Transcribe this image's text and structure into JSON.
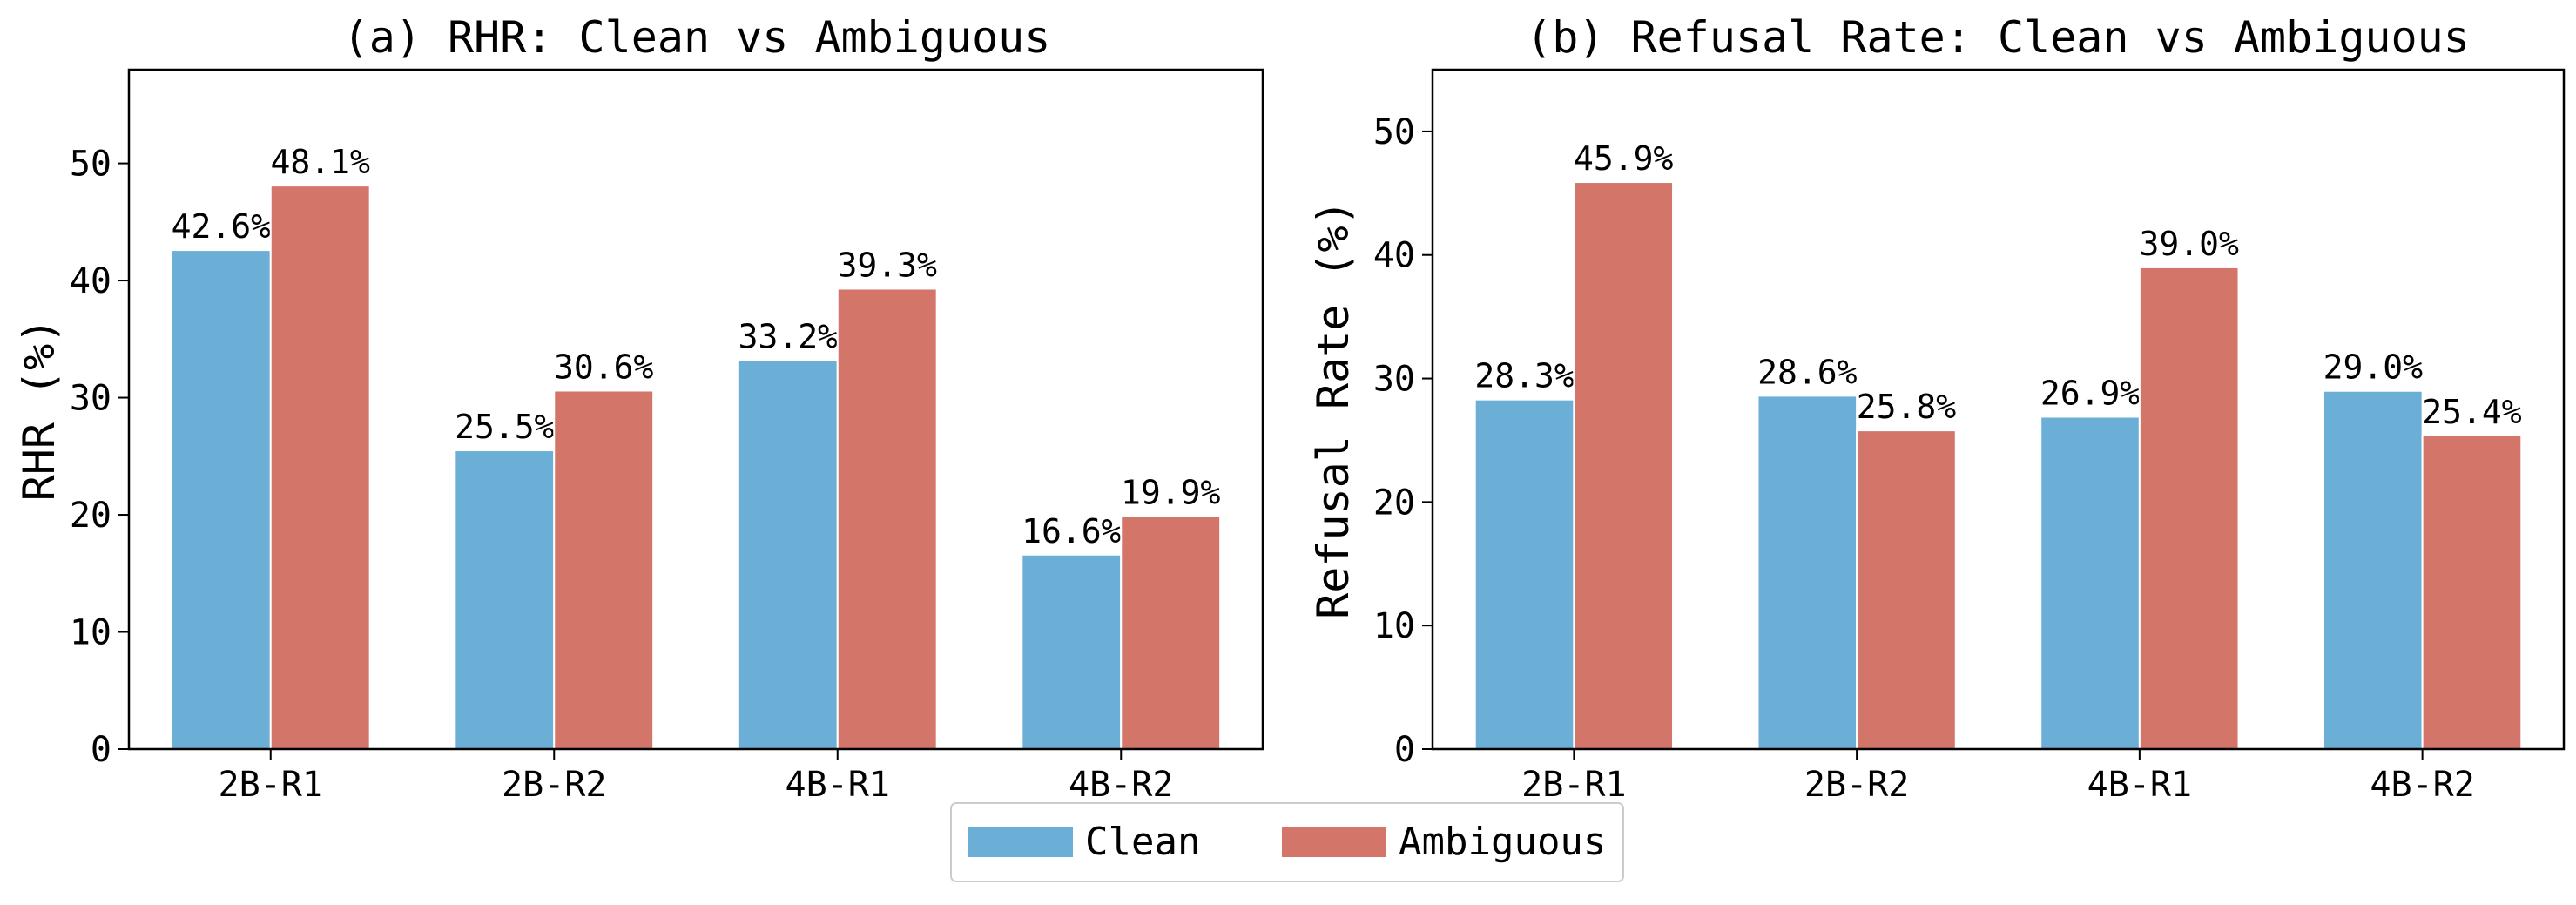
{
  "colors": {
    "clean": "#6BAED6",
    "ambiguous": "#D4756A",
    "axis": "#000000",
    "legend_border": "#CCCCCC"
  },
  "legend": {
    "items": [
      {
        "key": "clean",
        "label": "Clean"
      },
      {
        "key": "ambiguous",
        "label": "Ambiguous"
      }
    ],
    "placement": "bottom-center"
  },
  "chart_data": [
    {
      "id": "a",
      "type": "bar",
      "title": "(a) RHR: Clean vs Ambiguous",
      "xlabel": "",
      "ylabel": "RHR (%)",
      "categories": [
        "2B-R1",
        "2B-R2",
        "4B-R1",
        "4B-R2"
      ],
      "yticks": [
        0,
        10,
        20,
        30,
        40,
        50
      ],
      "ylim": [
        0,
        58
      ],
      "grid": false,
      "series": [
        {
          "name": "Clean",
          "values": [
            42.6,
            25.5,
            33.2,
            16.6
          ],
          "labels": [
            "42.6%",
            "25.5%",
            "33.2%",
            "16.6%"
          ]
        },
        {
          "name": "Ambiguous",
          "values": [
            48.1,
            30.6,
            39.3,
            19.9
          ],
          "labels": [
            "48.1%",
            "30.6%",
            "39.3%",
            "19.9%"
          ]
        }
      ]
    },
    {
      "id": "b",
      "type": "bar",
      "title": "(b) Refusal Rate: Clean vs Ambiguous",
      "xlabel": "",
      "ylabel": "Refusal Rate (%)",
      "categories": [
        "2B-R1",
        "2B-R2",
        "4B-R1",
        "4B-R2"
      ],
      "yticks": [
        0,
        10,
        20,
        30,
        40,
        50
      ],
      "ylim": [
        0,
        55
      ],
      "grid": false,
      "series": [
        {
          "name": "Clean",
          "values": [
            28.3,
            28.6,
            26.9,
            29.0
          ],
          "labels": [
            "28.3%",
            "28.6%",
            "26.9%",
            "29.0%"
          ]
        },
        {
          "name": "Ambiguous",
          "values": [
            45.9,
            25.8,
            39.0,
            25.4
          ],
          "labels": [
            "45.9%",
            "25.8%",
            "39.0%",
            "25.4%"
          ]
        }
      ]
    }
  ]
}
